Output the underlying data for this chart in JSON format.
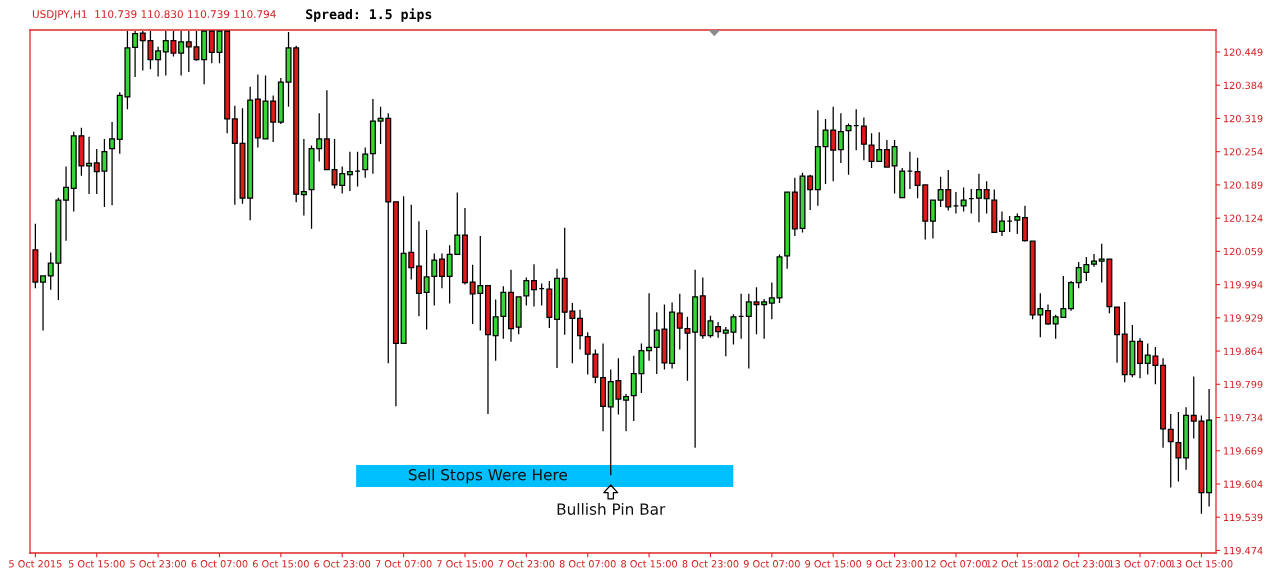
{
  "chart_data": {
    "type": "candlestick",
    "annotations": [
      "USDJPY,H1  110.739 110.830 110.739 110.794",
      "Spread: 1.5 pips",
      {
        "text": "Bullish Pin Bar",
        "y": 119.621
      }
    ],
    "categories": [
      "5 Oct 2015",
      null,
      null,
      null,
      null,
      null,
      null,
      null,
      "5 Oct 15:00",
      null,
      null,
      null,
      null,
      null,
      null,
      null,
      "5 Oct 23:00",
      null,
      null,
      null,
      null,
      null,
      null,
      null,
      "6 Oct 07:00",
      null,
      null,
      null,
      null,
      null,
      null,
      null,
      "6 Oct 15:00",
      null,
      null,
      null,
      null,
      null,
      null,
      null,
      "6 Oct 23:00",
      null,
      null,
      null,
      null,
      null,
      null,
      null,
      "7 Oct 07:00",
      null,
      null,
      null,
      null,
      null,
      null,
      null,
      "7 Oct 15:00",
      null,
      null,
      null,
      null,
      null,
      null,
      null,
      "7 Oct 23:00",
      null,
      null,
      null,
      null,
      null,
      null,
      null,
      "8 Oct 07:00",
      null,
      null,
      null,
      null,
      null,
      null,
      null,
      "8 Oct 15:00",
      null,
      null,
      null,
      null,
      null,
      null,
      null,
      "8 Oct 23:00",
      null,
      null,
      null,
      null,
      null,
      null,
      null,
      "9 Oct 07:00",
      null,
      null,
      null,
      null,
      null,
      null,
      null,
      "9 Oct 15:00",
      null,
      null,
      null,
      null,
      null,
      null,
      null,
      "9 Oct 23:00",
      null,
      null,
      null,
      null,
      null,
      null,
      null,
      "12 Oct 07:00",
      null,
      null,
      null,
      null,
      null,
      null,
      null,
      "12 Oct 15:00",
      null,
      null,
      null,
      null,
      null,
      null,
      null,
      "12 Oct 23:00",
      null,
      null,
      null,
      null,
      null,
      null,
      null,
      "13 Oct 07:00",
      null,
      null,
      null,
      null,
      null,
      null,
      null,
      "13 Oct 15:00",
      null
    ],
    "ohlc": [
      [
        120.062,
        120.113,
        119.987,
        119.999
      ],
      [
        119.999,
        120.012,
        119.904,
        120.011
      ],
      [
        120.011,
        120.057,
        119.984,
        120.036
      ],
      [
        120.036,
        120.164,
        119.964,
        120.159
      ],
      [
        120.159,
        120.225,
        120.08,
        120.184
      ],
      [
        120.182,
        120.293,
        120.137,
        120.285
      ],
      [
        120.285,
        120.301,
        120.207,
        120.226
      ],
      [
        120.226,
        120.283,
        120.171,
        120.231
      ],
      [
        120.232,
        120.259,
        120.171,
        120.215
      ],
      [
        120.216,
        120.279,
        120.146,
        120.254
      ],
      [
        120.26,
        120.312,
        120.149,
        120.279
      ],
      [
        120.278,
        120.37,
        120.25,
        120.364
      ],
      [
        120.361,
        120.49,
        120.337,
        120.457
      ],
      [
        120.458,
        120.49,
        120.4,
        120.485
      ],
      [
        120.486,
        120.49,
        120.413,
        120.471
      ],
      [
        120.471,
        120.49,
        120.415,
        120.434
      ],
      [
        120.434,
        120.459,
        120.401,
        120.451
      ],
      [
        120.449,
        120.49,
        120.403,
        120.471
      ],
      [
        120.471,
        120.49,
        120.44,
        120.447
      ],
      [
        120.447,
        120.49,
        120.403,
        120.469
      ],
      [
        120.469,
        120.49,
        120.41,
        120.459
      ],
      [
        120.459,
        120.49,
        120.432,
        120.434
      ],
      [
        120.434,
        120.49,
        120.386,
        120.49
      ],
      [
        120.49,
        120.49,
        120.427,
        120.448
      ],
      [
        120.448,
        120.49,
        120.427,
        120.49
      ],
      [
        120.49,
        120.49,
        120.29,
        120.318
      ],
      [
        120.318,
        120.344,
        120.15,
        120.27
      ],
      [
        120.27,
        120.339,
        120.152,
        120.163
      ],
      [
        120.163,
        120.381,
        120.12,
        120.355
      ],
      [
        120.357,
        120.405,
        120.262,
        120.281
      ],
      [
        120.279,
        120.403,
        120.279,
        120.353
      ],
      [
        120.353,
        120.364,
        120.273,
        120.312
      ],
      [
        120.312,
        120.398,
        120.308,
        120.39
      ],
      [
        120.39,
        120.488,
        120.342,
        120.457
      ],
      [
        120.457,
        120.461,
        120.155,
        120.171
      ],
      [
        120.17,
        120.279,
        120.129,
        120.176
      ],
      [
        120.18,
        120.266,
        120.103,
        120.26
      ],
      [
        120.26,
        120.329,
        120.235,
        120.279
      ],
      [
        120.279,
        120.374,
        120.219,
        120.219
      ],
      [
        120.219,
        120.279,
        120.182,
        120.189
      ],
      [
        120.188,
        120.225,
        120.172,
        120.211
      ],
      [
        120.209,
        120.254,
        120.177,
        120.215
      ],
      [
        120.216,
        120.254,
        120.186,
        120.216
      ],
      [
        120.219,
        120.262,
        120.203,
        120.249
      ],
      [
        120.25,
        120.357,
        120.211,
        120.314
      ],
      [
        120.314,
        120.342,
        120.269,
        120.319
      ],
      [
        120.319,
        120.329,
        119.84,
        120.156
      ],
      [
        120.156,
        120.156,
        119.756,
        119.879
      ],
      [
        119.879,
        120.167,
        119.879,
        120.055
      ],
      [
        120.057,
        120.15,
        120.004,
        120.027
      ],
      [
        120.03,
        120.118,
        119.932,
        119.977
      ],
      [
        119.979,
        120.101,
        119.906,
        120.009
      ],
      [
        120.01,
        120.055,
        119.953,
        120.042
      ],
      [
        120.044,
        120.055,
        119.987,
        120.01
      ],
      [
        120.01,
        120.071,
        119.957,
        120.053
      ],
      [
        120.053,
        120.174,
        120.052,
        120.091
      ],
      [
        120.091,
        120.144,
        119.994,
        119.998
      ],
      [
        119.999,
        120.033,
        119.917,
        119.976
      ],
      [
        119.977,
        120.089,
        119.904,
        119.992
      ],
      [
        119.992,
        119.992,
        119.741,
        119.896
      ],
      [
        119.894,
        119.965,
        119.845,
        119.931
      ],
      [
        119.932,
        119.991,
        119.888,
        119.979
      ],
      [
        119.979,
        120.023,
        119.882,
        119.908
      ],
      [
        119.911,
        119.97,
        119.897,
        119.97
      ],
      [
        119.972,
        120.008,
        119.953,
        120.002
      ],
      [
        120.002,
        120.034,
        119.951,
        119.984
      ],
      [
        119.986,
        119.996,
        119.953,
        119.986
      ],
      [
        119.985,
        120.001,
        119.909,
        119.93
      ],
      [
        119.926,
        120.025,
        119.831,
        120.006
      ],
      [
        120.006,
        120.105,
        119.896,
        119.94
      ],
      [
        119.942,
        119.958,
        119.84,
        119.928
      ],
      [
        119.928,
        119.945,
        119.867,
        119.894
      ],
      [
        119.892,
        119.901,
        119.818,
        119.858
      ],
      [
        119.858,
        119.867,
        119.801,
        119.813
      ],
      [
        119.812,
        119.879,
        119.707,
        119.756
      ],
      [
        119.755,
        119.828,
        119.621,
        119.804
      ],
      [
        119.806,
        119.85,
        119.74,
        119.77
      ],
      [
        119.768,
        119.78,
        119.707,
        119.775
      ],
      [
        119.777,
        119.855,
        119.727,
        119.82
      ],
      [
        119.82,
        119.879,
        119.782,
        119.865
      ],
      [
        119.865,
        119.977,
        119.845,
        119.871
      ],
      [
        119.871,
        119.94,
        119.819,
        119.905
      ],
      [
        119.907,
        119.955,
        119.828,
        119.841
      ],
      [
        119.84,
        119.959,
        119.83,
        119.94
      ],
      [
        119.938,
        119.976,
        119.867,
        119.909
      ],
      [
        119.908,
        119.931,
        119.806,
        119.899
      ],
      [
        119.901,
        120.023,
        119.675,
        119.97
      ],
      [
        119.972,
        120.008,
        119.888,
        119.894
      ],
      [
        119.894,
        119.933,
        119.89,
        119.923
      ],
      [
        119.912,
        119.921,
        119.89,
        119.902
      ],
      [
        119.899,
        119.911,
        119.854,
        119.905
      ],
      [
        119.901,
        119.936,
        119.877,
        119.931
      ],
      [
        119.932,
        119.976,
        119.888,
        119.932
      ],
      [
        119.932,
        119.976,
        119.83,
        119.96
      ],
      [
        119.96,
        119.989,
        119.897,
        119.955
      ],
      [
        119.955,
        119.966,
        119.888,
        119.96
      ],
      [
        119.958,
        119.998,
        119.926,
        119.968
      ],
      [
        119.968,
        120.053,
        119.958,
        120.048
      ],
      [
        120.05,
        120.175,
        120.025,
        120.175
      ],
      [
        120.175,
        120.203,
        120.089,
        120.103
      ],
      [
        120.104,
        120.213,
        120.096,
        120.206
      ],
      [
        120.206,
        120.209,
        120.14,
        120.18
      ],
      [
        120.18,
        120.335,
        120.148,
        120.264
      ],
      [
        120.264,
        120.318,
        120.191,
        120.296
      ],
      [
        120.296,
        120.342,
        120.196,
        120.257
      ],
      [
        120.258,
        120.329,
        120.232,
        120.293
      ],
      [
        120.295,
        120.309,
        120.209,
        120.305
      ],
      [
        120.305,
        120.337,
        120.257,
        120.305
      ],
      [
        120.304,
        120.321,
        120.237,
        120.269
      ],
      [
        120.267,
        120.29,
        120.222,
        120.235
      ],
      [
        120.235,
        120.292,
        120.234,
        120.258
      ],
      [
        120.258,
        120.277,
        120.224,
        120.224
      ],
      [
        120.226,
        120.277,
        120.172,
        120.264
      ],
      [
        120.164,
        120.222,
        120.164,
        120.216
      ],
      [
        120.216,
        120.254,
        120.181,
        120.216
      ],
      [
        120.215,
        120.242,
        120.163,
        120.188
      ],
      [
        120.189,
        120.189,
        120.082,
        120.118
      ],
      [
        120.118,
        120.159,
        120.084,
        120.159
      ],
      [
        120.159,
        120.205,
        120.146,
        120.18
      ],
      [
        120.18,
        120.218,
        120.139,
        120.146
      ],
      [
        120.148,
        120.175,
        120.133,
        120.148
      ],
      [
        120.148,
        120.184,
        120.137,
        120.159
      ],
      [
        120.162,
        120.181,
        120.133,
        120.162
      ],
      [
        120.163,
        120.211,
        120.116,
        120.18
      ],
      [
        120.18,
        120.196,
        120.133,
        120.162
      ],
      [
        120.159,
        120.18,
        120.096,
        120.096
      ],
      [
        120.098,
        120.137,
        120.089,
        120.118
      ],
      [
        120.118,
        120.128,
        120.097,
        120.118
      ],
      [
        120.12,
        120.133,
        120.093,
        120.127
      ],
      [
        120.125,
        120.148,
        120.078,
        120.08
      ],
      [
        120.079,
        120.08,
        119.926,
        119.935
      ],
      [
        119.935,
        119.977,
        119.891,
        119.947
      ],
      [
        119.943,
        119.955,
        119.915,
        119.917
      ],
      [
        119.917,
        119.935,
        119.888,
        119.931
      ],
      [
        119.93,
        120.011,
        119.93,
        119.947
      ],
      [
        119.947,
        120.001,
        119.943,
        119.998
      ],
      [
        119.998,
        120.038,
        119.987,
        120.027
      ],
      [
        120.018,
        120.048,
        120.001,
        120.033
      ],
      [
        120.034,
        120.054,
        120.029,
        120.04
      ],
      [
        120.04,
        120.074,
        119.998,
        120.044
      ],
      [
        120.044,
        120.045,
        119.938,
        119.951
      ],
      [
        119.95,
        119.95,
        119.841,
        119.896
      ],
      [
        119.897,
        119.96,
        119.803,
        119.818
      ],
      [
        119.818,
        119.915,
        119.813,
        119.883
      ],
      [
        119.883,
        119.889,
        119.811,
        119.84
      ],
      [
        119.84,
        119.879,
        119.818,
        119.856
      ],
      [
        119.854,
        119.872,
        119.799,
        119.836
      ],
      [
        119.836,
        119.85,
        119.675,
        119.712
      ],
      [
        119.711,
        119.741,
        119.597,
        119.687
      ],
      [
        119.685,
        119.745,
        119.609,
        119.655
      ],
      [
        119.655,
        119.754,
        119.632,
        119.738
      ],
      [
        119.738,
        119.814,
        119.693,
        119.727
      ],
      [
        119.727,
        119.738,
        119.546,
        119.587
      ],
      [
        119.587,
        119.79,
        119.56,
        119.729
      ]
    ],
    "ylim": [
      119.469,
      120.492
    ],
    "yticks": [
      120.449,
      120.384,
      120.319,
      120.254,
      120.189,
      120.124,
      120.059,
      119.994,
      119.929,
      119.864,
      119.799,
      119.734,
      119.669,
      119.604,
      119.539,
      119.474
    ],
    "bands": [
      {
        "axis": "y",
        "from": 119.598,
        "to": 119.641,
        "label": "Sell Stops Were Here",
        "color": "#00bfff"
      }
    ]
  }
}
